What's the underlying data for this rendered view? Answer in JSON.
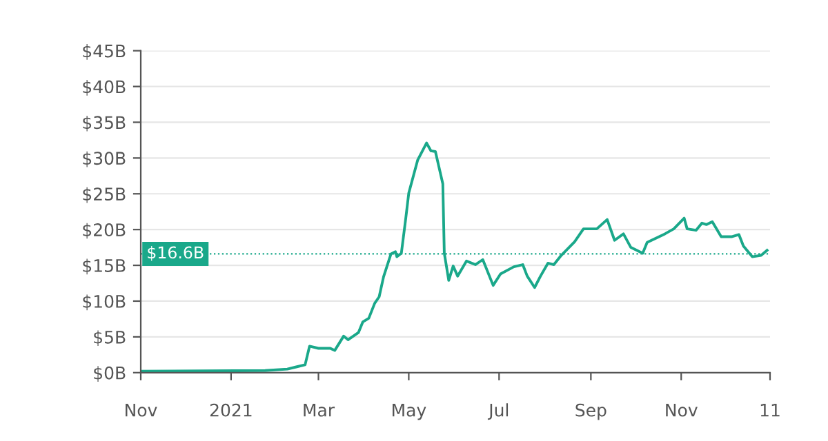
{
  "chart_data": {
    "type": "line",
    "x": [
      "2020-11-01",
      "2021-01-24",
      "2021-02-08",
      "2021-02-14",
      "2021-02-20",
      "2021-02-23",
      "2021-03-01",
      "2021-03-09",
      "2021-03-12",
      "2021-03-18",
      "2021-03-21",
      "2021-03-28",
      "2021-03-31",
      "2021-04-04",
      "2021-04-08",
      "2021-04-11",
      "2021-04-14",
      "2021-04-19",
      "2021-04-22",
      "2021-04-23",
      "2021-04-26",
      "2021-04-29",
      "2021-05-01",
      "2021-05-07",
      "2021-05-13",
      "2021-05-16",
      "2021-05-19",
      "2021-05-24",
      "2021-05-25",
      "2021-05-28",
      "2021-05-31",
      "2021-06-03",
      "2021-06-09",
      "2021-06-15",
      "2021-06-20",
      "2021-06-27",
      "2021-07-02",
      "2021-07-11",
      "2021-07-17",
      "2021-07-20",
      "2021-07-25",
      "2021-07-29",
      "2021-08-03",
      "2021-08-07",
      "2021-08-12",
      "2021-08-21",
      "2021-08-27",
      "2021-09-05",
      "2021-09-12",
      "2021-09-17",
      "2021-09-23",
      "2021-09-28",
      "2021-10-06",
      "2021-10-09",
      "2021-10-21",
      "2021-10-27",
      "2021-11-03",
      "2021-11-05",
      "2021-11-11",
      "2021-11-15",
      "2021-11-18",
      "2021-11-22",
      "2021-11-28",
      "2021-12-05",
      "2021-12-10",
      "2021-12-13",
      "2021-12-19",
      "2021-12-25",
      "2021-12-29"
    ],
    "series": [
      {
        "color": "#1aa88a",
        "values": [
          0.2,
          0.3,
          0.5,
          0.8,
          1.1,
          3.7,
          3.4,
          3.4,
          3.1,
          5.1,
          4.6,
          5.6,
          7.1,
          7.6,
          9.7,
          10.6,
          13.4,
          16.6,
          16.9,
          16.2,
          16.7,
          21.6,
          25.1,
          29.7,
          32.1,
          31.0,
          30.9,
          26.4,
          16.7,
          12.9,
          14.9,
          13.5,
          15.6,
          15.1,
          15.8,
          12.2,
          13.8,
          14.8,
          15.1,
          13.5,
          11.9,
          13.5,
          15.3,
          15.1,
          16.4,
          18.3,
          20.1,
          20.1,
          21.4,
          18.5,
          19.4,
          17.5,
          16.7,
          18.2,
          19.4,
          20.1,
          21.6,
          20.1,
          19.9,
          20.9,
          20.7,
          21.1,
          19.0,
          19.0,
          19.3,
          17.7,
          16.2,
          16.4,
          17.1
        ]
      }
    ],
    "xlim": [
      "2020-11-01",
      "2021-12-31"
    ],
    "xticks": [
      {
        "value": "2020-11-01",
        "label": "Nov"
      },
      {
        "value": "2021-01-01",
        "label": "2021"
      },
      {
        "value": "2021-03-01",
        "label": "Mar"
      },
      {
        "value": "2021-05-01",
        "label": "May"
      },
      {
        "value": "2021-07-01",
        "label": "Jul"
      },
      {
        "value": "2021-09-01",
        "label": "Sep"
      },
      {
        "value": "2021-11-01",
        "label": "Nov"
      },
      {
        "value": "2021-12-31",
        "label": "11"
      }
    ],
    "ylim": [
      0,
      45
    ],
    "yticks": [
      {
        "value": 0,
        "label": "$0B"
      },
      {
        "value": 5,
        "label": "$5B"
      },
      {
        "value": 10,
        "label": "$10B"
      },
      {
        "value": 15,
        "label": "$15B"
      },
      {
        "value": 20,
        "label": "$20B"
      },
      {
        "value": 25,
        "label": "$25B"
      },
      {
        "value": 30,
        "label": "$30B"
      },
      {
        "value": 35,
        "label": "$35B"
      },
      {
        "value": 40,
        "label": "$40B"
      },
      {
        "value": 45,
        "label": "$45B"
      }
    ],
    "ref_lines": [
      {
        "axis": "y",
        "value": 16.6,
        "label": "$16.6B",
        "color": "#1aa88a",
        "line_style": "dotted"
      }
    ],
    "grid": "y",
    "legend": false
  }
}
